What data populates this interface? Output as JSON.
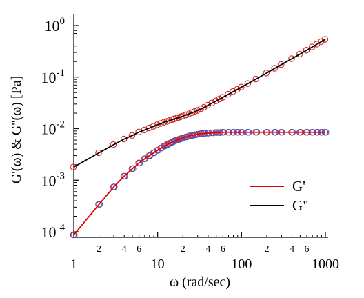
{
  "chart_data": {
    "type": "scatter",
    "title": "",
    "xlabel": "ω (rad/sec)",
    "ylabel": "G'(ω)  & G''(ω) [Pa]",
    "xscale": "log",
    "yscale": "log",
    "xlim": [
      1,
      1000
    ],
    "ylim": [
      0.0001,
      1
    ],
    "grid": false,
    "legend_placement": "bottom-right",
    "x_major_ticks": [
      {
        "value": 1,
        "label": "1"
      },
      {
        "value": 10,
        "label": "10"
      },
      {
        "value": 100,
        "label": "100"
      },
      {
        "value": 1000,
        "label": "1000"
      }
    ],
    "x_minor_labels": [
      {
        "value": 2,
        "label": "2"
      },
      {
        "value": 4,
        "label": "4"
      },
      {
        "value": 6,
        "label": "6"
      },
      {
        "value": 20,
        "label": "2"
      },
      {
        "value": 40,
        "label": "4"
      },
      {
        "value": 60,
        "label": "6"
      },
      {
        "value": 200,
        "label": "2"
      },
      {
        "value": 400,
        "label": "4"
      },
      {
        "value": 600,
        "label": "6"
      }
    ],
    "y_major_ticks": [
      {
        "value": 0.0001,
        "base": "10",
        "exp": "-4"
      },
      {
        "value": 0.001,
        "base": "10",
        "exp": "-3"
      },
      {
        "value": 0.01,
        "base": "10",
        "exp": "-2"
      },
      {
        "value": 0.1,
        "base": "10",
        "exp": "-1"
      },
      {
        "value": 1,
        "base": "10",
        "exp": "0"
      }
    ],
    "series": [
      {
        "name": "G'",
        "line_color": "#e00000",
        "marker_colors": [
          "#d42020",
          "#3060e0"
        ],
        "points": [
          [
            1,
            8.7e-05
          ],
          [
            2,
            0.00034
          ],
          [
            3,
            0.00074
          ],
          [
            4,
            0.0012
          ],
          [
            5,
            0.00168
          ],
          [
            6,
            0.00215
          ],
          [
            7,
            0.0026
          ],
          [
            8,
            0.003
          ],
          [
            9,
            0.0034
          ],
          [
            10,
            0.0038
          ],
          [
            11,
            0.0042
          ],
          [
            12,
            0.0046
          ],
          [
            13,
            0.0049
          ],
          [
            14,
            0.0052
          ],
          [
            15,
            0.0055
          ],
          [
            16,
            0.0058
          ],
          [
            17,
            0.006
          ],
          [
            18,
            0.0062
          ],
          [
            19,
            0.0064
          ],
          [
            20,
            0.0066
          ],
          [
            22,
            0.0069
          ],
          [
            24,
            0.0072
          ],
          [
            26,
            0.0074
          ],
          [
            28,
            0.0076
          ],
          [
            30,
            0.0078
          ],
          [
            33,
            0.008
          ],
          [
            36,
            0.0081
          ],
          [
            40,
            0.0082
          ],
          [
            45,
            0.0083
          ],
          [
            50,
            0.0084
          ],
          [
            55,
            0.0084
          ],
          [
            60,
            0.0085
          ],
          [
            70,
            0.0085
          ],
          [
            80,
            0.0085
          ],
          [
            90,
            0.0085
          ],
          [
            100,
            0.0085
          ],
          [
            120,
            0.0085
          ],
          [
            150,
            0.0085
          ],
          [
            200,
            0.0085
          ],
          [
            250,
            0.0085
          ],
          [
            300,
            0.0085
          ],
          [
            400,
            0.0085
          ],
          [
            500,
            0.0085
          ],
          [
            600,
            0.0085
          ],
          [
            700,
            0.0085
          ],
          [
            800,
            0.0085
          ],
          [
            900,
            0.0085
          ],
          [
            1000,
            0.0085
          ]
        ]
      },
      {
        "name": "G''",
        "line_color": "#000000",
        "marker_colors": [
          "#d42020",
          "#d42020"
        ],
        "points": [
          [
            1,
            0.0018
          ],
          [
            2,
            0.0034
          ],
          [
            3,
            0.0049
          ],
          [
            4,
            0.0063
          ],
          [
            5,
            0.0074
          ],
          [
            6,
            0.0086
          ],
          [
            7,
            0.0094
          ],
          [
            8,
            0.0103
          ],
          [
            9,
            0.0111
          ],
          [
            10,
            0.0119
          ],
          [
            11,
            0.0126
          ],
          [
            12,
            0.0133
          ],
          [
            13,
            0.0138
          ],
          [
            14,
            0.0144
          ],
          [
            15,
            0.015
          ],
          [
            16,
            0.0155
          ],
          [
            17,
            0.016
          ],
          [
            18,
            0.0165
          ],
          [
            19,
            0.017
          ],
          [
            20,
            0.0175
          ],
          [
            22,
            0.0185
          ],
          [
            24,
            0.0195
          ],
          [
            26,
            0.0205
          ],
          [
            28,
            0.0215
          ],
          [
            30,
            0.0225
          ],
          [
            33,
            0.0243
          ],
          [
            36,
            0.026
          ],
          [
            40,
            0.0285
          ],
          [
            45,
            0.0315
          ],
          [
            50,
            0.0345
          ],
          [
            55,
            0.0375
          ],
          [
            60,
            0.0405
          ],
          [
            70,
            0.0465
          ],
          [
            80,
            0.0525
          ],
          [
            90,
            0.058
          ],
          [
            100,
            0.064
          ],
          [
            120,
            0.075
          ],
          [
            150,
            0.092
          ],
          [
            200,
            0.12
          ],
          [
            250,
            0.148
          ],
          [
            300,
            0.175
          ],
          [
            400,
            0.228
          ],
          [
            500,
            0.28
          ],
          [
            600,
            0.333
          ],
          [
            700,
            0.385
          ],
          [
            800,
            0.437
          ],
          [
            900,
            0.488
          ],
          [
            1000,
            0.54
          ]
        ]
      }
    ],
    "legend": [
      {
        "label": "G'",
        "color": "#e00000"
      },
      {
        "label": "G\"",
        "color": "#000000"
      }
    ]
  }
}
